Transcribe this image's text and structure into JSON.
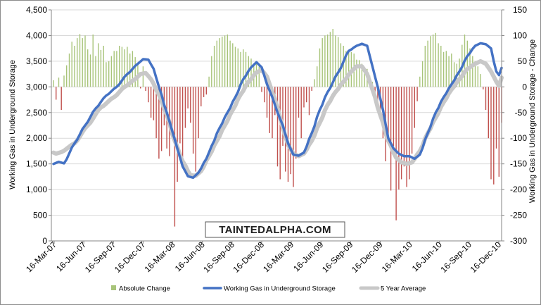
{
  "chart_data": {
    "type": "bar+line",
    "title": "",
    "watermark": "TAINTEDALPHA.COM",
    "ylabel_left": "Working Gas in Underground Storage",
    "ylabel_right": "Working Gas in Underground Storage - Change",
    "ylim_left": [
      0,
      4500
    ],
    "ylim_right": [
      -300,
      150
    ],
    "left_ticks": [
      "0",
      "500",
      "1,000",
      "1,500",
      "2,000",
      "2,500",
      "3,000",
      "3,500",
      "4,000",
      "4,500"
    ],
    "right_ticks": [
      "-300",
      "-250",
      "-200",
      "-150",
      "-100",
      "-50",
      "0",
      "50",
      "100",
      "150"
    ],
    "x_ticks": [
      "16-Mar-07",
      "16-Jun-07",
      "16-Sep-07",
      "16-Dec-07",
      "16-Mar-08",
      "16-Jun-08",
      "16-Sep-08",
      "16-Dec-08",
      "16-Mar-09",
      "16-Jun-09",
      "16-Sep-09",
      "16-Dec-09",
      "16-Mar-10",
      "16-Jun-10",
      "16-Sep-10",
      "16-Dec-10"
    ],
    "legend": {
      "position": "bottom",
      "items": [
        {
          "label": "Absolute Change",
          "color": "#a8c47a",
          "kind": "bar"
        },
        {
          "label": "Working Gas in Underground Storage",
          "color": "#4472c4",
          "kind": "line"
        },
        {
          "label": "5 Year Average",
          "color": "#c8c8c8",
          "kind": "line"
        }
      ]
    },
    "colors": {
      "injection": "#a8c47a",
      "withdrawal": "#c0504d",
      "storage": "#4472c4",
      "avg": "#c8c8c8",
      "grid": "#d9d9d9",
      "axis": "#868686"
    },
    "x_start": "16-Mar-07",
    "weekly_interval_days": 7,
    "series": [
      {
        "name": "Working Gas in Underground Storage",
        "axis": "left",
        "keyframes": [
          [
            0,
            1500
          ],
          [
            2,
            1540
          ],
          [
            4,
            1510
          ],
          [
            8,
            1900
          ],
          [
            12,
            2250
          ],
          [
            16,
            2580
          ],
          [
            20,
            2830
          ],
          [
            24,
            3000
          ],
          [
            28,
            3250
          ],
          [
            32,
            3450
          ],
          [
            34,
            3540
          ],
          [
            36,
            3530
          ],
          [
            38,
            3350
          ],
          [
            40,
            3000
          ],
          [
            43,
            2500
          ],
          [
            45,
            2150
          ],
          [
            47,
            1800
          ],
          [
            49,
            1450
          ],
          [
            51,
            1260
          ],
          [
            53,
            1230
          ],
          [
            55,
            1330
          ],
          [
            58,
            1600
          ],
          [
            60,
            1850
          ],
          [
            63,
            2200
          ],
          [
            66,
            2500
          ],
          [
            69,
            2800
          ],
          [
            72,
            3150
          ],
          [
            75,
            3380
          ],
          [
            77,
            3480
          ],
          [
            79,
            3380
          ],
          [
            81,
            3050
          ],
          [
            83,
            2800
          ],
          [
            85,
            2500
          ],
          [
            87,
            2250
          ],
          [
            89,
            1900
          ],
          [
            91,
            1680
          ],
          [
            93,
            1660
          ],
          [
            95,
            1720
          ],
          [
            98,
            2100
          ],
          [
            101,
            2550
          ],
          [
            104,
            2900
          ],
          [
            108,
            3280
          ],
          [
            112,
            3700
          ],
          [
            115,
            3800
          ],
          [
            117,
            3840
          ],
          [
            119,
            3800
          ],
          [
            121,
            3400
          ],
          [
            123,
            3000
          ],
          [
            125,
            2550
          ],
          [
            127,
            2000
          ],
          [
            129,
            1800
          ],
          [
            131,
            1700
          ],
          [
            133,
            1650
          ],
          [
            135,
            1650
          ],
          [
            137,
            1600
          ],
          [
            139,
            1680
          ],
          [
            142,
            2100
          ],
          [
            145,
            2500
          ],
          [
            148,
            2800
          ],
          [
            151,
            3050
          ],
          [
            154,
            3300
          ],
          [
            157,
            3600
          ],
          [
            160,
            3800
          ],
          [
            162,
            3850
          ],
          [
            164,
            3830
          ],
          [
            166,
            3750
          ],
          [
            167,
            3500
          ],
          [
            168,
            3300
          ],
          [
            169,
            3230
          ]
        ]
      },
      {
        "name": "5 Year Average",
        "axis": "left",
        "keyframes": [
          [
            0,
            1720
          ],
          [
            1,
            1700
          ],
          [
            3,
            1730
          ],
          [
            8,
            1900
          ],
          [
            13,
            2250
          ],
          [
            18,
            2600
          ],
          [
            23,
            2800
          ],
          [
            27,
            3000
          ],
          [
            31,
            3150
          ],
          [
            33,
            3250
          ],
          [
            35,
            3270
          ],
          [
            37,
            3150
          ],
          [
            40,
            2850
          ],
          [
            43,
            2450
          ],
          [
            46,
            1950
          ],
          [
            49,
            1550
          ],
          [
            52,
            1280
          ],
          [
            54,
            1270
          ],
          [
            56,
            1360
          ],
          [
            59,
            1650
          ],
          [
            62,
            1950
          ],
          [
            65,
            2250
          ],
          [
            68,
            2550
          ],
          [
            71,
            2850
          ],
          [
            74,
            3100
          ],
          [
            77,
            3280
          ],
          [
            79,
            3330
          ],
          [
            81,
            3200
          ],
          [
            83,
            2900
          ],
          [
            85,
            2600
          ],
          [
            87,
            2200
          ],
          [
            89,
            1870
          ],
          [
            91,
            1700
          ],
          [
            93,
            1650
          ],
          [
            95,
            1700
          ],
          [
            98,
            1950
          ],
          [
            101,
            2300
          ],
          [
            104,
            2650
          ],
          [
            107,
            2900
          ],
          [
            110,
            3100
          ],
          [
            113,
            3300
          ],
          [
            115,
            3400
          ],
          [
            117,
            3400
          ],
          [
            119,
            3250
          ],
          [
            121,
            2950
          ],
          [
            124,
            2450
          ],
          [
            127,
            1950
          ],
          [
            130,
            1620
          ],
          [
            132,
            1530
          ],
          [
            134,
            1500
          ],
          [
            136,
            1530
          ],
          [
            139,
            1750
          ],
          [
            142,
            2100
          ],
          [
            145,
            2400
          ],
          [
            148,
            2700
          ],
          [
            151,
            2950
          ],
          [
            154,
            3150
          ],
          [
            157,
            3350
          ],
          [
            160,
            3450
          ],
          [
            162,
            3500
          ],
          [
            164,
            3450
          ],
          [
            166,
            3300
          ],
          [
            168,
            3100
          ],
          [
            169,
            3020
          ]
        ]
      },
      {
        "name": "Absolute Change",
        "axis": "right",
        "weekly_values": [
          13,
          -25,
          18,
          -45,
          22,
          42,
          65,
          88,
          80,
          95,
          103,
          95,
          100,
          73,
          63,
          102,
          60,
          85,
          72,
          80,
          48,
          50,
          60,
          70,
          70,
          80,
          78,
          73,
          78,
          65,
          70,
          58,
          45,
          -3,
          40,
          -8,
          -30,
          -60,
          -65,
          -100,
          -140,
          -125,
          -75,
          -120,
          -135,
          -85,
          -272,
          -185,
          -110,
          -155,
          -80,
          -42,
          -70,
          -130,
          -165,
          -100,
          -38,
          -20,
          -15,
          20,
          60,
          80,
          90,
          95,
          98,
          100,
          102,
          90,
          85,
          78,
          75,
          68,
          73,
          68,
          60,
          55,
          45,
          50,
          40,
          -10,
          -30,
          -60,
          -90,
          -100,
          -55,
          -155,
          -180,
          -115,
          -165,
          -185,
          -170,
          -195,
          -140,
          -60,
          -100,
          -40,
          -30,
          -55,
          -8,
          15,
          40,
          75,
          95,
          100,
          102,
          107,
          113,
          100,
          97,
          85,
          80,
          70,
          67,
          68,
          65,
          53,
          52,
          45,
          38,
          35,
          22,
          10,
          -10,
          -30,
          -60,
          -100,
          -145,
          -105,
          -202,
          -115,
          -260,
          -200,
          -180,
          -155,
          -195,
          -180,
          -130,
          -80,
          -28,
          20,
          50,
          80,
          90,
          99,
          102,
          105,
          85,
          80,
          68,
          70,
          60,
          65,
          48,
          45,
          55,
          82,
          102,
          90,
          75,
          60,
          50,
          40,
          25,
          -5,
          -45,
          -100,
          -180,
          -190,
          -120,
          -175,
          -70
        ]
      }
    ]
  }
}
